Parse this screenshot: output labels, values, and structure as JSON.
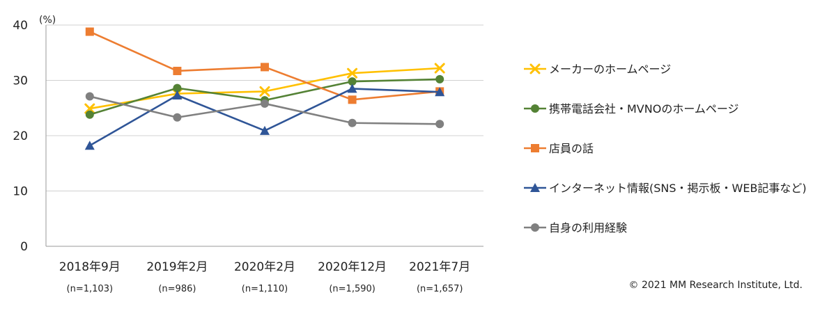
{
  "chart_data": {
    "type": "line",
    "unit_label": "(%)",
    "ylim": [
      0,
      40
    ],
    "yticks": [
      0,
      10,
      20,
      30,
      40
    ],
    "grid": true,
    "legend_position": "right",
    "categories": [
      "2018年9月",
      "2019年2月",
      "2020年2月",
      "2020年12月",
      "2021年7月"
    ],
    "sample_sizes": [
      "(n=1,103)",
      "(n=986)",
      "(n=1,110)",
      "(n=1,590)",
      "(n=1,657)"
    ],
    "series": [
      {
        "name": "メーカーのホームページ",
        "color": "#FFC000",
        "marker": "x",
        "values": [
          24.9,
          27.6,
          28.0,
          31.3,
          32.2
        ]
      },
      {
        "name": "携帯電話会社・MVNOのホームページ",
        "color": "#548235",
        "marker": "circle",
        "values": [
          23.8,
          28.6,
          26.4,
          29.8,
          30.2
        ]
      },
      {
        "name": "店員の話",
        "color": "#ED7D31",
        "marker": "square",
        "values": [
          38.8,
          31.7,
          32.4,
          26.5,
          28.0
        ]
      },
      {
        "name": "インターネット情報(SNS・掲示板・WEB記事など)",
        "color": "#2F5597",
        "marker": "triangle",
        "values": [
          18.2,
          27.3,
          20.9,
          28.5,
          27.9
        ]
      },
      {
        "name": "自身の利用経験",
        "color": "#808080",
        "marker": "circle",
        "values": [
          27.1,
          23.3,
          25.8,
          22.3,
          22.1
        ]
      }
    ]
  },
  "copyright": "© 2021 MM Research Institute, Ltd."
}
